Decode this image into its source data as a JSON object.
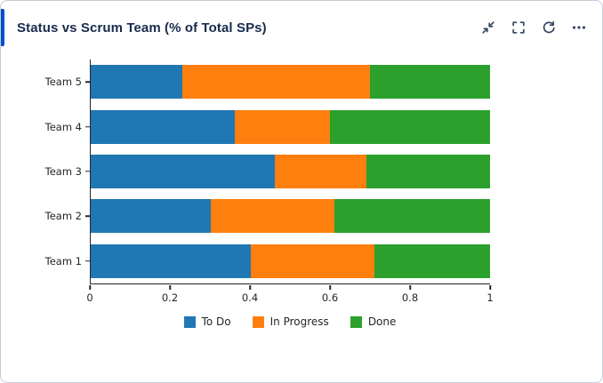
{
  "header": {
    "title": "Status vs Scrum Team (% of Total SPs)",
    "accent_color": "#0052cc",
    "icon_color": "#344563"
  },
  "chart_data": {
    "type": "bar",
    "orientation": "horizontal",
    "stacked": true,
    "title": "Status vs Scrum Team (% of Total SPs)",
    "categories": [
      "Team 1",
      "Team 2",
      "Team 3",
      "Team 4",
      "Team 5"
    ],
    "series": [
      {
        "name": "To Do",
        "color": "#1f77b4",
        "values": [
          0.4,
          0.3,
          0.46,
          0.36,
          0.23
        ]
      },
      {
        "name": "In Progress",
        "color": "#ff7f0e",
        "values": [
          0.31,
          0.31,
          0.23,
          0.24,
          0.47
        ]
      },
      {
        "name": "Done",
        "color": "#2ca02c",
        "values": [
          0.29,
          0.39,
          0.31,
          0.4,
          0.3
        ]
      }
    ],
    "xlim": [
      0,
      1
    ],
    "x_ticks": [
      0,
      0.2,
      0.4,
      0.6,
      0.8,
      1
    ],
    "x_tick_labels": [
      "0",
      "0.2",
      "0.4",
      "0.6",
      "0.8",
      "1"
    ],
    "xlabel": "",
    "ylabel": "",
    "grid": false,
    "legend_position": "bottom"
  }
}
